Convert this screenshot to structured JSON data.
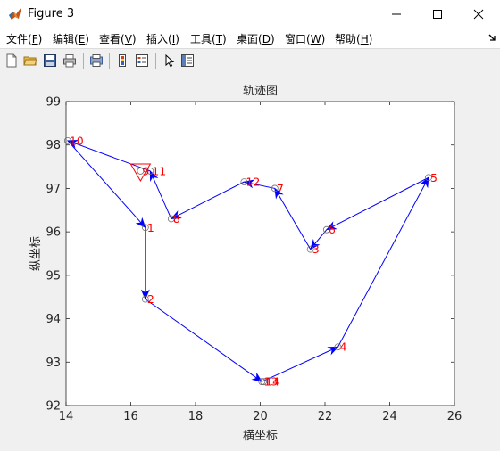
{
  "window": {
    "title": "Figure 3"
  },
  "menu": [
    {
      "label": "文件",
      "key": "F"
    },
    {
      "label": "编辑",
      "key": "E"
    },
    {
      "label": "查看",
      "key": "V"
    },
    {
      "label": "插入",
      "key": "I"
    },
    {
      "label": "工具",
      "key": "T"
    },
    {
      "label": "桌面",
      "key": "D"
    },
    {
      "label": "窗口",
      "key": "W"
    },
    {
      "label": "帮助",
      "key": "H"
    }
  ],
  "toolbar_icons": [
    "new-file-icon",
    "open-folder-icon",
    "save-icon",
    "print-icon",
    "print-preview-icon",
    "colorbar-icon",
    "legend-icon",
    "pointer-icon",
    "property-editor-icon"
  ],
  "chart_data": {
    "type": "line",
    "title": "轨迹图",
    "xlabel": "横坐标",
    "ylabel": "纵坐标",
    "xlim": [
      14,
      26
    ],
    "ylim": [
      92,
      99
    ],
    "xticks": [
      14,
      16,
      18,
      20,
      22,
      24,
      26
    ],
    "yticks": [
      92,
      93,
      94,
      95,
      96,
      97,
      98,
      99
    ],
    "grid": false,
    "points": [
      {
        "label": "1",
        "x": 16.45,
        "y": 96.1
      },
      {
        "label": "2",
        "x": 16.45,
        "y": 94.45
      },
      {
        "label": "3",
        "x": 21.55,
        "y": 95.6
      },
      {
        "label": "4",
        "x": 22.4,
        "y": 93.35
      },
      {
        "label": "5",
        "x": 25.2,
        "y": 97.25
      },
      {
        "label": "6",
        "x": 22.05,
        "y": 96.05
      },
      {
        "label": "7",
        "x": 20.45,
        "y": 97.0
      },
      {
        "label": "8",
        "x": 17.25,
        "y": 96.3
      },
      {
        "label": "9",
        "x": 16.3,
        "y": 97.4
      },
      {
        "label": "10",
        "x": 14.05,
        "y": 98.1
      },
      {
        "label": "11",
        "x": 16.6,
        "y": 97.4
      },
      {
        "label": "12",
        "x": 19.5,
        "y": 97.15
      },
      {
        "label": "13",
        "x": 20.05,
        "y": 92.55
      },
      {
        "label": "14",
        "x": 20.1,
        "y": 92.55
      }
    ],
    "path": [
      "11",
      "10",
      "1",
      "2",
      "13",
      "4",
      "5",
      "6",
      "3",
      "7",
      "12",
      "8",
      "11"
    ],
    "marker_triangle": {
      "x": 16.3,
      "y": 97.4
    },
    "colors": {
      "line": "#0000ff",
      "label": "#ff0000",
      "marker": "#707070",
      "triangle": "#ff0000"
    }
  }
}
